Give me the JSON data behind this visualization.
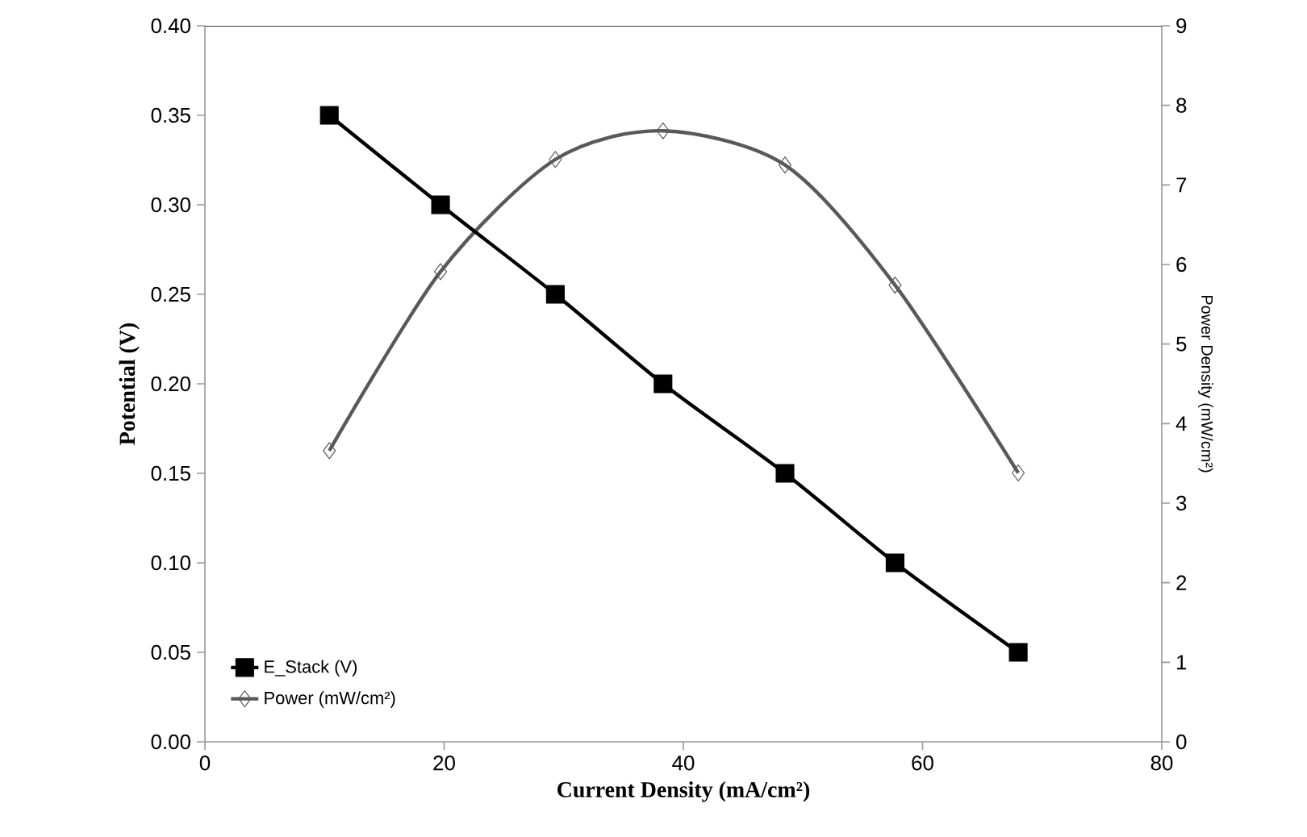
{
  "chart_data": {
    "type": "line",
    "xlabel": "Current Density (mA/cm²)",
    "ylabel": "Potential (V)",
    "y2label": "Power Density (mW/cm²)",
    "x": [
      10.4,
      19.7,
      29.3,
      38.3,
      48.5,
      57.7,
      68.0
    ],
    "series": [
      {
        "name": "E_Stack (V)",
        "color": "#000000",
        "marker": "square",
        "values": [
          0.35,
          0.3,
          0.25,
          0.2,
          0.15,
          0.1,
          0.05
        ]
      },
      {
        "name": "Power (mW/cm²)",
        "color": "#595959",
        "marker": "diamond",
        "axis": "y2",
        "values": [
          3.66,
          5.91,
          7.32,
          7.68,
          7.25,
          5.74,
          3.38
        ]
      }
    ],
    "xlim": [
      0,
      80
    ],
    "xticks": [
      0,
      20,
      40,
      60,
      80
    ],
    "ylim": [
      0,
      0.4
    ],
    "yticks": [
      {
        "value": 0,
        "label": "0.00"
      },
      {
        "value": 0.05,
        "label": "0.05"
      },
      {
        "value": 0.1,
        "label": "0.10"
      },
      {
        "value": 0.15,
        "label": "0.15"
      },
      {
        "value": 0.2,
        "label": "0.20"
      },
      {
        "value": 0.25,
        "label": "0.25"
      },
      {
        "value": 0.3,
        "label": "0.30"
      },
      {
        "value": 0.35,
        "label": "0.35"
      },
      {
        "value": 0.4,
        "label": "0.40"
      }
    ],
    "y2lim": [
      0,
      9
    ],
    "y2ticks": [
      0,
      1,
      2,
      3,
      4,
      5,
      6,
      7,
      8,
      9
    ],
    "grid": false,
    "legend": "bottom left"
  }
}
